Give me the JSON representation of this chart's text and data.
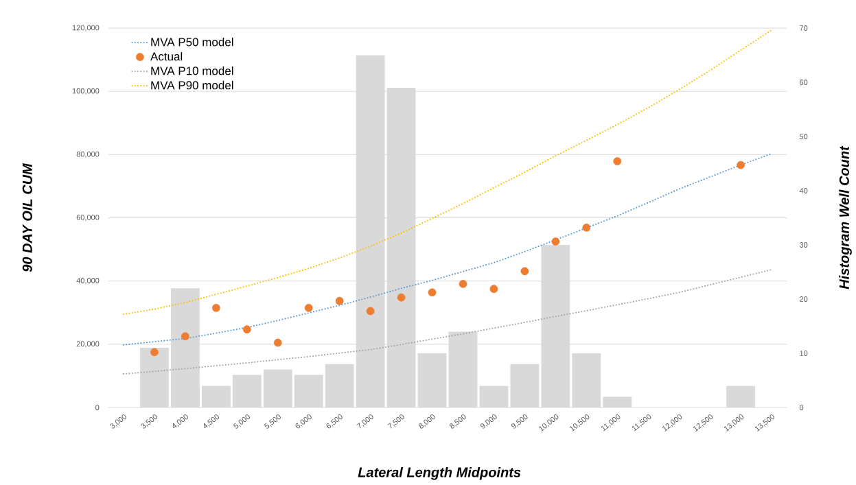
{
  "chart_data": {
    "type": "bar",
    "xlabel": "Lateral Length Midpoints",
    "ylabel": "90 DAY OIL CUM",
    "y2label": "Histogram Well Count",
    "categories": [
      "3,000",
      "3,500",
      "4,000",
      "4,500",
      "5,000",
      "5,500",
      "6,000",
      "6,500",
      "7,000",
      "7,500",
      "8,000",
      "8,500",
      "9,000",
      "9,500",
      "10,000",
      "10,500",
      "11,000",
      "11,500",
      "12,000",
      "12,500",
      "13,000",
      "13,500"
    ],
    "series": [
      {
        "axis": "y2",
        "color": "#d9d9d9",
        "values": [
          null,
          11,
          22,
          4,
          6,
          7,
          6,
          8,
          65,
          59,
          10,
          14,
          4,
          8,
          30,
          10,
          2,
          null,
          null,
          null,
          4,
          null
        ]
      },
      {
        "name": "MVA P50 model",
        "type": "line",
        "line_style": "dotted",
        "marker": "none",
        "color": "#5b9bd5",
        "values": [
          19800,
          20800,
          21800,
          23500,
          25300,
          27500,
          29900,
          32300,
          34900,
          37700,
          40200,
          43000,
          45800,
          49300,
          53000,
          56800,
          60600,
          64800,
          69100,
          72900,
          76700,
          80300
        ]
      },
      {
        "name": "Actual",
        "type": "scatter",
        "marker": "circle",
        "color": "#ed7d31",
        "values": [
          null,
          17500,
          22500,
          31500,
          24700,
          20500,
          31500,
          33700,
          30500,
          34800,
          36400,
          39100,
          37500,
          43100,
          52500,
          56900,
          77900,
          null,
          null,
          null,
          76700,
          null
        ]
      },
      {
        "name": "MVA P10 model",
        "type": "line",
        "line_style": "dotted",
        "marker": "none",
        "color": "#a5a5a5",
        "values": [
          10600,
          11400,
          12300,
          13200,
          14100,
          15100,
          16100,
          17200,
          18300,
          19900,
          21600,
          23300,
          25100,
          26900,
          28800,
          30600,
          32500,
          34400,
          36400,
          38800,
          41200,
          43600
        ]
      },
      {
        "name": "MVA P90 model",
        "type": "line",
        "line_style": "dotted",
        "marker": "none",
        "color": "#ffc000",
        "values": [
          29500,
          31100,
          33200,
          35800,
          38400,
          41100,
          44000,
          47300,
          51000,
          55200,
          59800,
          64500,
          69500,
          74400,
          79600,
          84500,
          89500,
          94800,
          100500,
          106600,
          113000,
          119400
        ]
      }
    ],
    "ylim": [
      0,
      120000
    ],
    "yticks": [
      0,
      {
        "value": 20000,
        "label": "20,000"
      },
      {
        "value": 40000,
        "label": "40,000"
      },
      {
        "value": 60000,
        "label": "60,000"
      },
      {
        "value": 80000,
        "label": "80,000"
      },
      {
        "value": 100000,
        "label": "100,000"
      },
      {
        "value": 120000,
        "label": "120,000"
      }
    ],
    "y2lim": [
      0,
      70
    ],
    "y2ticks": [
      0,
      10,
      20,
      30,
      40,
      50,
      60,
      70
    ],
    "grid": "y",
    "legend": "top left"
  }
}
